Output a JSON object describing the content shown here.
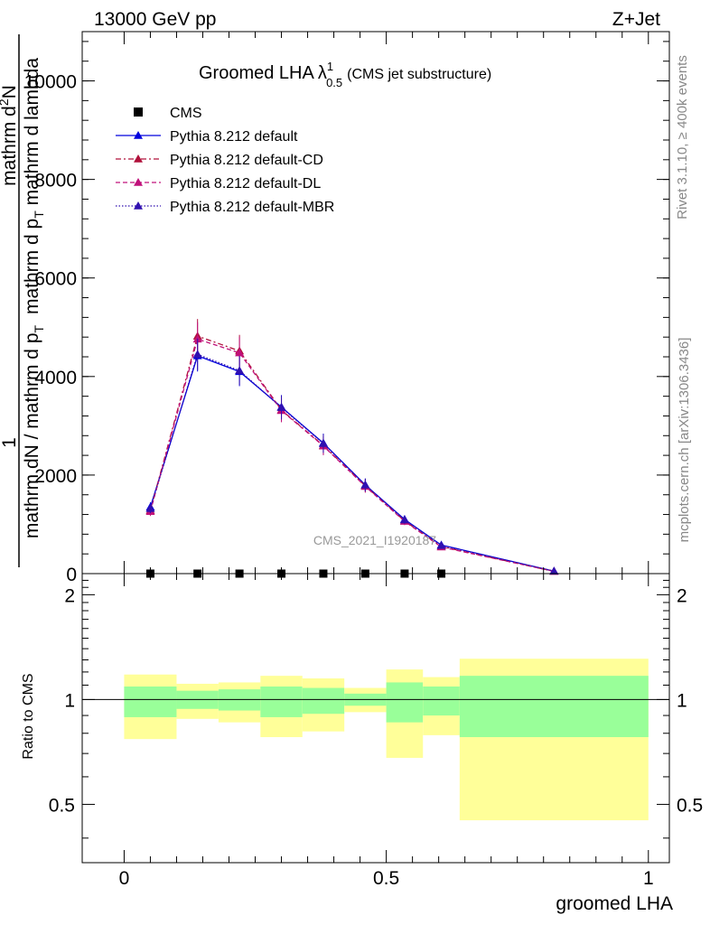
{
  "header": {
    "energy_label": "13000 GeV pp",
    "process_label": "Z+Jet"
  },
  "side_labels": {
    "rivet": "Rivet 3.1.10, ≥ 400k events",
    "mcplots": "mcplots.cern.ch [arXiv:1306.3436]"
  },
  "watermark": "CMS_2021_I1920187",
  "chart_data": [
    {
      "type": "line",
      "panel": "main",
      "title": "Groomed LHA",
      "title_symbol": "λ",
      "title_sup": "1",
      "title_sub": "0.5",
      "subtitle": "(CMS jet substructure)",
      "ylabel_parts": {
        "one": "1",
        "denominator": "mathrm dN / mathrm d p",
        "denominator_sub": "T",
        "numerator": "mathrm d",
        "numerator_sup": "2",
        "numerator_tail": "N",
        "lower": "mathrm d p",
        "lower_sub": "T",
        "lower_tail": " mathrm d lambda"
      },
      "xlim": [
        -0.08,
        1.04
      ],
      "ylim": [
        0,
        11000
      ],
      "y_ticks": [
        0,
        2000,
        4000,
        6000,
        8000,
        10000
      ],
      "y_tick_labels": [
        "0",
        "2000",
        "4000",
        "6000",
        "8000",
        "10000"
      ],
      "legend_position": "top-left",
      "series": [
        {
          "name": "CMS",
          "color": "#000000",
          "marker": "square",
          "dash": "",
          "x": [
            0.05,
            0.14,
            0.22,
            0.3,
            0.38,
            0.46,
            0.535,
            0.605
          ],
          "y": [
            0,
            0,
            0,
            0,
            0,
            0,
            0,
            0
          ],
          "xerr": [
            0.05,
            0.04,
            0.04,
            0.04,
            0.04,
            0.04,
            0.035,
            0.035
          ]
        },
        {
          "name": "Pythia 8.212 default",
          "color": "#0000dd",
          "marker": "triangle",
          "dash": "",
          "x": [
            0.05,
            0.14,
            0.22,
            0.3,
            0.38,
            0.46,
            0.535,
            0.605,
            0.82
          ],
          "y": [
            1350,
            4420,
            4100,
            3380,
            2650,
            1800,
            1100,
            580,
            50
          ]
        },
        {
          "name": "Pythia 8.212 default-CD",
          "color": "#b0103a",
          "marker": "triangle",
          "dash": "6,3,2,3",
          "x": [
            0.05,
            0.14,
            0.22,
            0.3,
            0.38,
            0.46,
            0.535,
            0.605,
            0.82
          ],
          "y": [
            1280,
            4820,
            4520,
            3320,
            2600,
            1780,
            1070,
            550,
            45
          ]
        },
        {
          "name": "Pythia 8.212 default-DL",
          "color": "#c0107a",
          "marker": "triangle",
          "dash": "5,3",
          "x": [
            0.05,
            0.14,
            0.22,
            0.3,
            0.38,
            0.46,
            0.535,
            0.605,
            0.82
          ],
          "y": [
            1260,
            4760,
            4480,
            3310,
            2590,
            1770,
            1060,
            540,
            45
          ]
        },
        {
          "name": "Pythia 8.212 default-MBR",
          "color": "#3010b0",
          "marker": "triangle",
          "dash": "1.5,2",
          "x": [
            0.05,
            0.14,
            0.22,
            0.3,
            0.38,
            0.46,
            0.535,
            0.605,
            0.82
          ],
          "y": [
            1320,
            4450,
            4120,
            3370,
            2640,
            1800,
            1090,
            570,
            50
          ]
        }
      ]
    },
    {
      "type": "area",
      "panel": "ratio",
      "ylabel": "Ratio to CMS",
      "xlabel": "groomed LHA",
      "xlim": [
        -0.08,
        1.04
      ],
      "ylim": [
        0.34,
        2.3
      ],
      "x_ticks": [
        0,
        0.5,
        1
      ],
      "x_tick_labels": [
        "0",
        "0.5",
        "1"
      ],
      "y_ticks": [
        0.5,
        1,
        2
      ],
      "y_tick_labels": [
        "0.5",
        "1",
        "2"
      ],
      "reference_line": 1,
      "band_colors": {
        "outer": "#ffff99",
        "inner": "#99ff99"
      },
      "bins": [
        {
          "x0": 0.0,
          "x1": 0.1,
          "outer": [
            0.77,
            1.18
          ],
          "inner": [
            0.89,
            1.09
          ]
        },
        {
          "x0": 0.1,
          "x1": 0.18,
          "outer": [
            0.88,
            1.11
          ],
          "inner": [
            0.94,
            1.06
          ]
        },
        {
          "x0": 0.18,
          "x1": 0.26,
          "outer": [
            0.86,
            1.12
          ],
          "inner": [
            0.93,
            1.07
          ]
        },
        {
          "x0": 0.26,
          "x1": 0.34,
          "outer": [
            0.78,
            1.17
          ],
          "inner": [
            0.89,
            1.09
          ]
        },
        {
          "x0": 0.34,
          "x1": 0.42,
          "outer": [
            0.81,
            1.15
          ],
          "inner": [
            0.91,
            1.08
          ]
        },
        {
          "x0": 0.42,
          "x1": 0.5,
          "outer": [
            0.92,
            1.08
          ],
          "inner": [
            0.96,
            1.04
          ]
        },
        {
          "x0": 0.5,
          "x1": 0.57,
          "outer": [
            0.68,
            1.22
          ],
          "inner": [
            0.86,
            1.12
          ]
        },
        {
          "x0": 0.57,
          "x1": 0.64,
          "outer": [
            0.79,
            1.16
          ],
          "inner": [
            0.9,
            1.09
          ]
        },
        {
          "x0": 0.64,
          "x1": 1.0,
          "outer": [
            0.45,
            1.31
          ],
          "inner": [
            0.78,
            1.17
          ]
        }
      ]
    }
  ]
}
